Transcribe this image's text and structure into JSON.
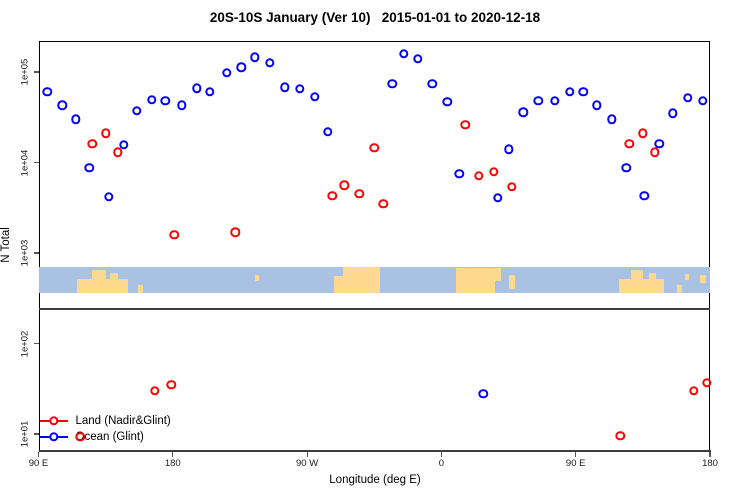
{
  "chart_data": {
    "type": "scatter",
    "title": "20S-10S January (Ver 10)   2015-01-01 to 2020-12-18",
    "xlabel": "Longitude (deg E)",
    "ylabel": "N Total",
    "x_axis": {
      "note": "longitude axis wraps: 90E to 180 to 90W to 0 to 90E to 180, stored as 90..540 continuous degrees",
      "domain": [
        90,
        540
      ],
      "ticks": [
        {
          "lon": 90,
          "label": "90 E"
        },
        {
          "lon": 180,
          "label": "180"
        },
        {
          "lon": 270,
          "label": "90 W"
        },
        {
          "lon": 360,
          "label": "0"
        },
        {
          "lon": 450,
          "label": "90 E"
        },
        {
          "lon": 540,
          "label": "180"
        }
      ]
    },
    "y_axis": {
      "scale": "log10",
      "domain": [
        6.3,
        230000
      ],
      "ticks": [
        {
          "value": 100000,
          "label": "1e+05"
        },
        {
          "value": 10000,
          "label": "1e+04"
        },
        {
          "value": 1000,
          "label": "1e+03"
        },
        {
          "value": 100,
          "label": "1e+02"
        },
        {
          "value": 10,
          "label": "1e+01"
        }
      ]
    },
    "legend": [
      {
        "name": "Land (Nadir&Glint)",
        "color": "#FF0000"
      },
      {
        "name": "Ocean (Glint)",
        "color": "#0000FF"
      }
    ],
    "series": [
      {
        "name": "Land (Nadir&Glint)",
        "color": "#FF0000",
        "points": [
          [
            126,
            16000
          ],
          [
            135,
            21000
          ],
          [
            143,
            13000
          ],
          [
            181,
            1600
          ],
          [
            222,
            1700
          ],
          [
            287,
            4300
          ],
          [
            295,
            5600
          ],
          [
            305,
            4500
          ],
          [
            315,
            14500
          ],
          [
            321,
            3500
          ],
          [
            376,
            26000
          ],
          [
            385,
            7100
          ],
          [
            395,
            7900
          ],
          [
            407,
            5400
          ],
          [
            486,
            16000
          ],
          [
            495,
            21000
          ],
          [
            503,
            13000
          ],
          [
            168,
            30
          ],
          [
            179,
            35
          ],
          [
            118,
            9.3
          ],
          [
            480,
            9.5
          ],
          [
            529,
            30
          ],
          [
            538,
            37
          ]
        ]
      },
      {
        "name": "Ocean (Glint)",
        "color": "#0000FF",
        "points": [
          [
            96,
            60000
          ],
          [
            106,
            43000
          ],
          [
            115,
            30000
          ],
          [
            124,
            8700
          ],
          [
            137,
            4200
          ],
          [
            147,
            15600
          ],
          [
            156,
            37000
          ],
          [
            166,
            49000
          ],
          [
            175,
            48000
          ],
          [
            186,
            43000
          ],
          [
            196,
            66000
          ],
          [
            205,
            60000
          ],
          [
            216,
            98000
          ],
          [
            226,
            113000
          ],
          [
            235,
            146000
          ],
          [
            245,
            126000
          ],
          [
            255,
            68000
          ],
          [
            265,
            65000
          ],
          [
            275,
            53000
          ],
          [
            284,
            22000
          ],
          [
            327,
            74000
          ],
          [
            335,
            158000
          ],
          [
            344,
            139000
          ],
          [
            354,
            74000
          ],
          [
            364,
            47000
          ],
          [
            372,
            7500
          ],
          [
            398,
            4100
          ],
          [
            405,
            14000
          ],
          [
            415,
            36000
          ],
          [
            425,
            48000
          ],
          [
            436,
            48000
          ],
          [
            446,
            60000
          ],
          [
            455,
            60000
          ],
          [
            464,
            43000
          ],
          [
            474,
            30000
          ],
          [
            484,
            8700
          ],
          [
            496,
            4300
          ],
          [
            506,
            16000
          ],
          [
            515,
            35000
          ],
          [
            525,
            52000
          ],
          [
            535,
            48000
          ],
          [
            388,
            28
          ]
        ]
      }
    ],
    "map_strip": {
      "ocean_color": "#A9C2E3",
      "land_color": "#FCD98E",
      "land_patches": [
        {
          "lon": [
            116,
            150
          ],
          "band": [
            0.45,
            1
          ]
        },
        {
          "lon": [
            126,
            135
          ],
          "band": [
            0.12,
            0.45
          ]
        },
        {
          "lon": [
            138,
            143
          ],
          "band": [
            0.22,
            0.45
          ]
        },
        {
          "lon": [
            157,
            160
          ],
          "band": [
            0.7,
            1
          ]
        },
        {
          "lon": [
            235,
            237.5
          ],
          "band": [
            0.3,
            0.55
          ]
        },
        {
          "lon": [
            288,
            294
          ],
          "band": [
            0.35,
            1
          ]
        },
        {
          "lon": [
            294,
            319
          ],
          "band": [
            0,
            1
          ]
        },
        {
          "lon": [
            370,
            400
          ],
          "band": [
            0.05,
            1
          ]
        },
        {
          "lon": [
            396,
            400.5
          ],
          "band": [
            0.55,
            1
          ],
          "water": true
        },
        {
          "lon": [
            405,
            409
          ],
          "band": [
            0.3,
            0.85
          ]
        },
        {
          "lon": [
            479,
            509
          ],
          "band": [
            0.45,
            1
          ]
        },
        {
          "lon": [
            487,
            495
          ],
          "band": [
            0.12,
            0.45
          ]
        },
        {
          "lon": [
            499,
            504
          ],
          "band": [
            0.22,
            0.45
          ]
        },
        {
          "lon": [
            518,
            521
          ],
          "band": [
            0.7,
            1
          ]
        },
        {
          "lon": [
            523,
            526
          ],
          "band": [
            0.25,
            0.5
          ]
        },
        {
          "lon": [
            533,
            537
          ],
          "band": [
            0.3,
            0.6
          ]
        }
      ]
    },
    "layout": {
      "grid": false,
      "legend_position": "bottom-left inside plot"
    }
  }
}
